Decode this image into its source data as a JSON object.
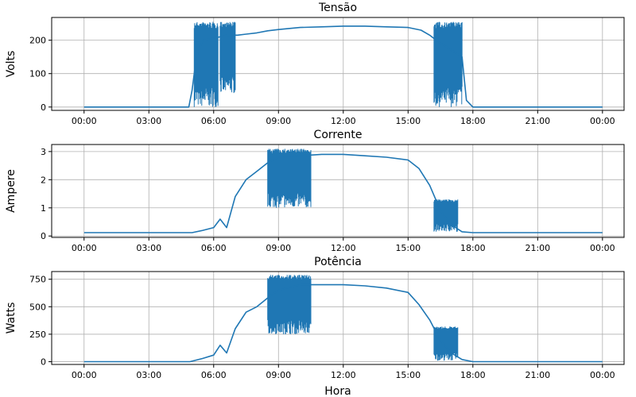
{
  "chart_data": [
    {
      "type": "line",
      "title": "Tensão",
      "ylabel": "Volts",
      "xlabel": "",
      "xlim_hours": [
        -1.5,
        25.0
      ],
      "ylim": [
        -10,
        268
      ],
      "yticks": [
        0,
        100,
        200
      ],
      "xtick_labels": [
        "00:00",
        "03:00",
        "06:00",
        "09:00",
        "12:00",
        "15:00",
        "18:00",
        "21:00",
        "00:00"
      ],
      "grid": true,
      "line_color": "#1f77b4",
      "series": [
        {
          "x_hours": [
            0,
            4.85,
            5.0,
            5.2,
            5.5,
            6.3,
            6.6,
            7.1,
            7.5,
            8.0,
            8.5,
            9.0,
            10.0,
            11.0,
            12.0,
            13.0,
            14.0,
            15.0,
            15.6,
            16.0,
            16.3,
            17.5,
            17.7,
            18.0,
            24.0
          ],
          "y": [
            0,
            0,
            50,
            150,
            200,
            210,
            215,
            215,
            218,
            222,
            228,
            232,
            238,
            240,
            242,
            242,
            240,
            238,
            230,
            215,
            200,
            150,
            20,
            0,
            0
          ],
          "oscillation_bands": [
            {
              "from_hour": 5.1,
              "to_hour": 6.2,
              "low": 0,
              "high": 255
            },
            {
              "from_hour": 6.3,
              "to_hour": 7.0,
              "low": 40,
              "high": 255
            },
            {
              "from_hour": 16.2,
              "to_hour": 17.5,
              "low": 0,
              "high": 255
            }
          ]
        }
      ]
    },
    {
      "type": "line",
      "title": "Corrente",
      "ylabel": "Ampere",
      "xlabel": "",
      "xlim_hours": [
        -1.5,
        25.0
      ],
      "ylim": [
        -0.05,
        3.25
      ],
      "yticks": [
        0,
        1,
        2,
        3
      ],
      "xtick_labels": [
        "00:00",
        "03:00",
        "06:00",
        "09:00",
        "12:00",
        "15:00",
        "18:00",
        "21:00",
        "00:00"
      ],
      "grid": true,
      "line_color": "#1f77b4",
      "series": [
        {
          "x_hours": [
            0,
            5.0,
            5.5,
            6.0,
            6.3,
            6.6,
            7.0,
            7.5,
            8.0,
            8.5,
            9.0,
            10.0,
            11.0,
            12.0,
            13.0,
            14.0,
            15.0,
            15.5,
            16.0,
            16.5,
            17.0,
            17.5,
            18.0,
            24.0
          ],
          "y": [
            0.12,
            0.12,
            0.2,
            0.3,
            0.6,
            0.3,
            1.4,
            2.0,
            2.3,
            2.6,
            2.8,
            2.85,
            2.9,
            2.9,
            2.85,
            2.8,
            2.7,
            2.4,
            1.8,
            0.9,
            0.4,
            0.15,
            0.12,
            0.12
          ],
          "oscillation_bands": [
            {
              "from_hour": 8.5,
              "to_hour": 10.5,
              "low": 1.0,
              "high": 3.1
            },
            {
              "from_hour": 16.2,
              "to_hour": 17.3,
              "low": 0.15,
              "high": 1.3
            }
          ]
        }
      ]
    },
    {
      "type": "line",
      "title": "Potência",
      "ylabel": "Watts",
      "xlabel": "Hora",
      "xlim_hours": [
        -1.5,
        25.0
      ],
      "ylim": [
        -25,
        820
      ],
      "yticks": [
        0,
        250,
        500,
        750
      ],
      "xtick_labels": [
        "00:00",
        "03:00",
        "06:00",
        "09:00",
        "12:00",
        "15:00",
        "18:00",
        "21:00",
        "00:00"
      ],
      "grid": true,
      "line_color": "#1f77b4",
      "series": [
        {
          "x_hours": [
            0,
            4.9,
            5.5,
            6.0,
            6.3,
            6.6,
            7.0,
            7.5,
            8.0,
            8.5,
            9.0,
            10.0,
            11.0,
            12.0,
            13.0,
            14.0,
            15.0,
            15.5,
            16.0,
            16.5,
            17.0,
            17.5,
            18.0,
            24.0
          ],
          "y": [
            0,
            0,
            30,
            60,
            150,
            80,
            300,
            450,
            500,
            580,
            650,
            700,
            700,
            700,
            690,
            670,
            630,
            520,
            380,
            190,
            80,
            20,
            0,
            0
          ],
          "oscillation_bands": [
            {
              "from_hour": 8.5,
              "to_hour": 10.5,
              "low": 250,
              "high": 790
            },
            {
              "from_hour": 16.2,
              "to_hour": 17.3,
              "low": 10,
              "high": 320
            }
          ]
        }
      ]
    }
  ]
}
